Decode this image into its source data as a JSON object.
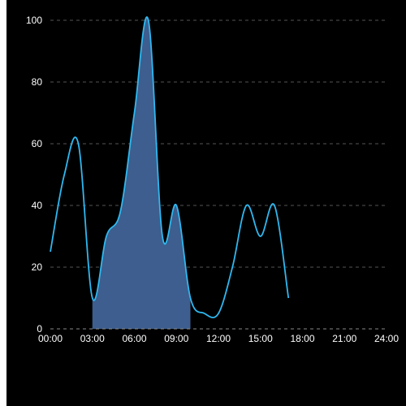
{
  "chart_data": {
    "type": "area",
    "title": "",
    "xlabel": "",
    "ylabel": "",
    "x_ticks": [
      "00:00",
      "03:00",
      "06:00",
      "09:00",
      "12:00",
      "15:00",
      "18:00",
      "21:00",
      "24:00"
    ],
    "y_ticks": [
      "0",
      "20",
      "40",
      "60",
      "80",
      "100"
    ],
    "xlim_hours": [
      0,
      24
    ],
    "ylim": [
      0,
      100
    ],
    "grid": "horizontal dashed",
    "series": [
      {
        "x": [
          "00:00",
          "01:00",
          "02:00",
          "03:00",
          "04:00",
          "05:00",
          "06:00",
          "07:00",
          "08:00",
          "09:00",
          "10:00",
          "11:00",
          "12:00",
          "13:00",
          "14:00",
          "15:00",
          "16:00",
          "17:00"
        ],
        "values": [
          25,
          50,
          60,
          10,
          30,
          38,
          70,
          100,
          30,
          40,
          10,
          5,
          5,
          20,
          40,
          30,
          40,
          10
        ]
      }
    ],
    "shaded_range": [
      "03:00",
      "10:00"
    ],
    "colors": {
      "line": "#2fb8f0",
      "area": "#3d5e8e",
      "grid": "#555555",
      "text": "#ffffff",
      "background": "#000000"
    }
  }
}
